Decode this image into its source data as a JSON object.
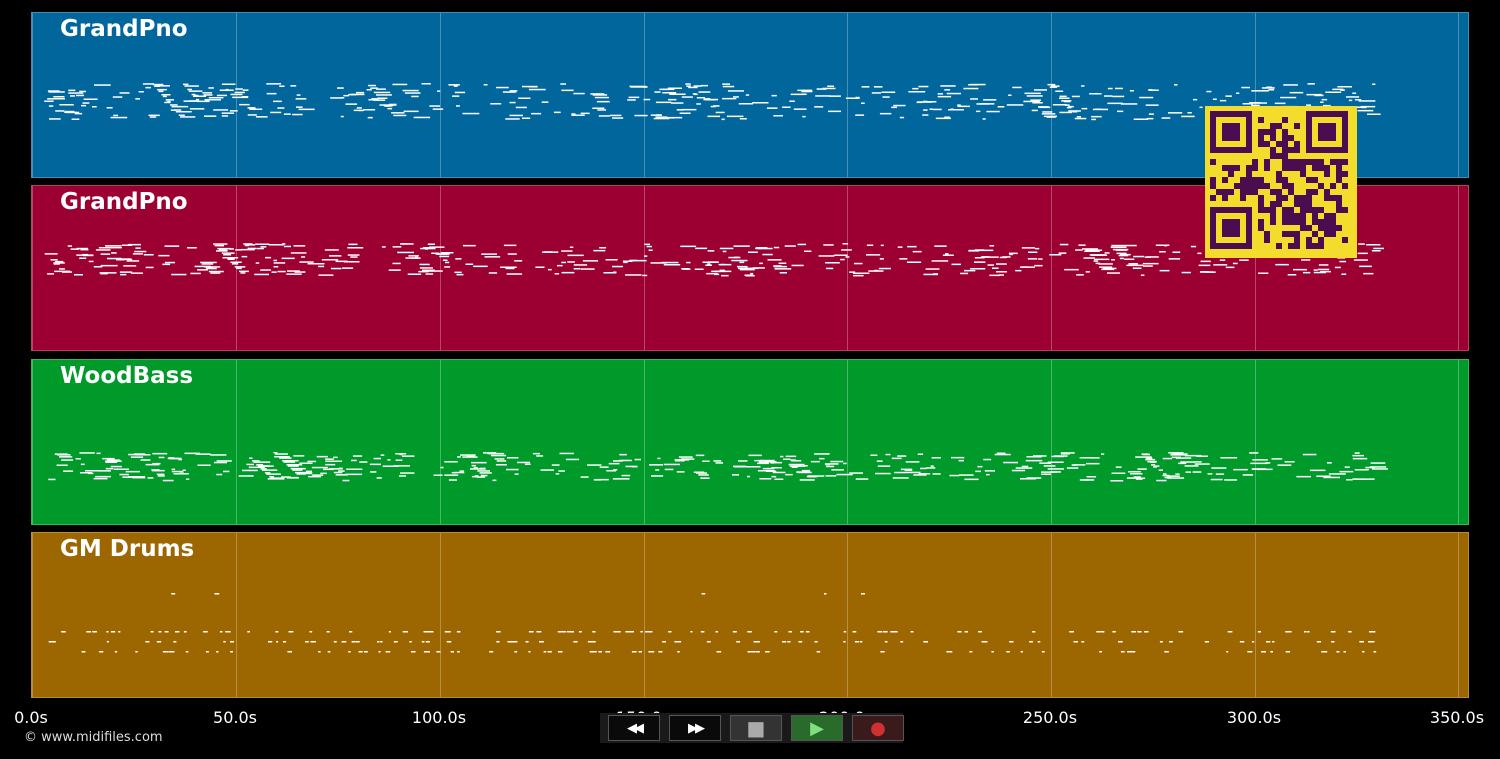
{
  "tracks": [
    {
      "name": "GrandPno",
      "color": "#00669c"
    },
    {
      "name": "GrandPno",
      "color": "#9c0033"
    },
    {
      "name": "WoodBass",
      "color": "#009a2b"
    },
    {
      "name": "GM Drums",
      "color": "#9c6600"
    }
  ],
  "timeline": {
    "ticks": [
      "0.0s",
      "50.0s",
      "100.0s",
      "150.0s",
      "200.0s",
      "250.0s",
      "300.0s",
      "350.0s"
    ]
  },
  "copyright": "© www.midifiles.com",
  "transport": {
    "rewind": "◀◀",
    "fast_forward": "▶▶",
    "stop": "■",
    "play": "▶",
    "record": "●"
  },
  "colors": {
    "note": "#ffffff",
    "qr_background": "#f4dc2c",
    "qr_foreground": "#4a0d4f",
    "play_active": "#2a7a2a",
    "record": "#d03030"
  }
}
